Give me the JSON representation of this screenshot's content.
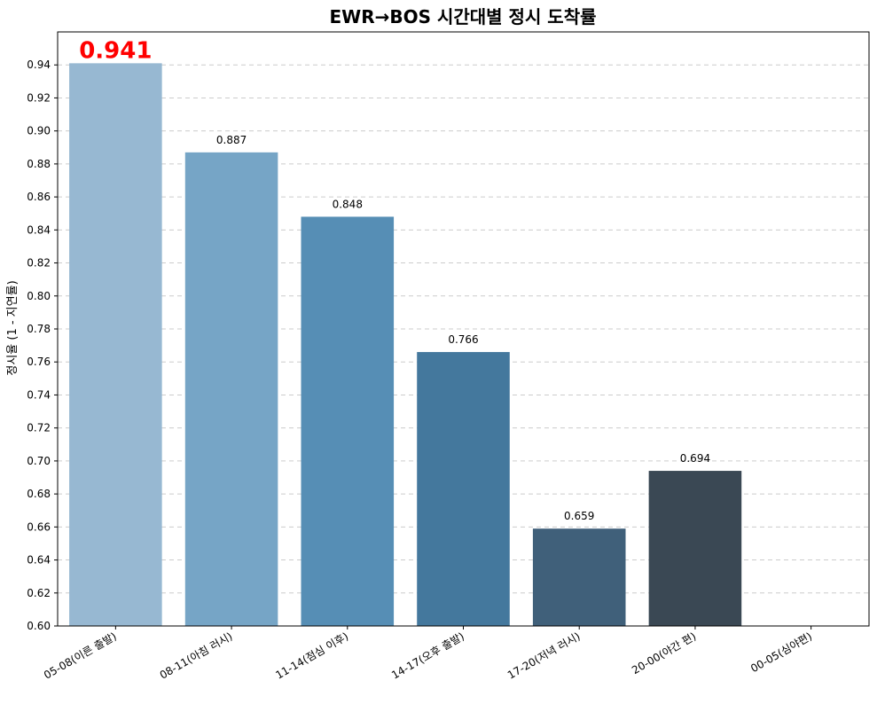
{
  "chart_data": {
    "type": "bar",
    "title": "EWR→BOS 시간대별 정시 도착률",
    "xlabel": "",
    "ylabel": "정시율 (1 - 지연률)",
    "ylim": [
      0.6,
      0.96
    ],
    "yticks": [
      "0.60",
      "0.62",
      "0.64",
      "0.66",
      "0.68",
      "0.70",
      "0.72",
      "0.74",
      "0.76",
      "0.78",
      "0.80",
      "0.82",
      "0.84",
      "0.86",
      "0.88",
      "0.90",
      "0.92",
      "0.94"
    ],
    "grid": true,
    "categories": [
      "05-08(이른 출발)",
      "08-11(아침 러시)",
      "11-14(점심 이후)",
      "14-17(오후 출발)",
      "17-20(저녁 러시)",
      "20-00(야간 편)",
      "00-05(심야편)"
    ],
    "values": [
      0.941,
      0.887,
      0.848,
      0.766,
      0.659,
      0.694,
      null
    ],
    "value_labels": [
      "0.941",
      "0.887",
      "0.848",
      "0.766",
      "0.659",
      "0.694",
      ""
    ],
    "highlight": {
      "index": 0,
      "color": "#ff0000"
    },
    "colors": [
      "#97b8d2",
      "#76a5c6",
      "#568eb5",
      "#44789d",
      "#40607a",
      "#3a4854",
      "#3a4854"
    ]
  }
}
